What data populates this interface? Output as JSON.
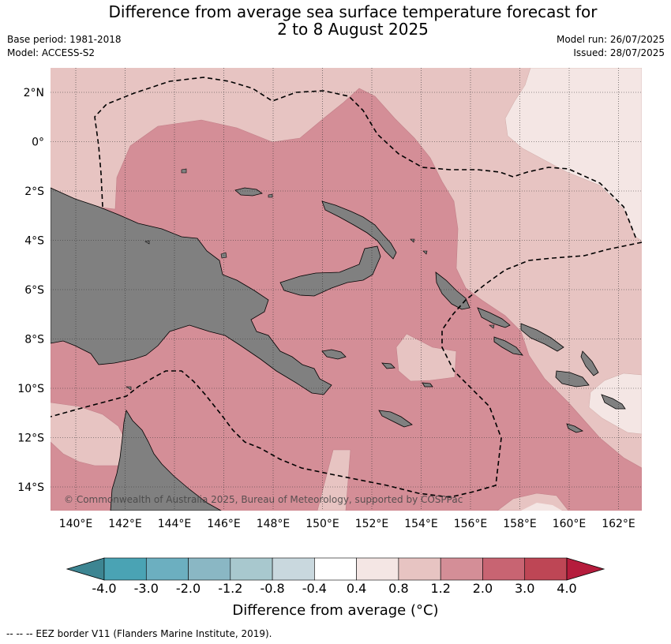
{
  "header": {
    "title_line1": "Difference from average sea surface temperature forecast for",
    "title_line2": "2 to 8 August 2025",
    "base_period": "Base period: 1981-2018",
    "model": "Model: ACCESS-S2",
    "model_run": "Model run: 26/07/2025",
    "issued": "Issued: 28/07/2025"
  },
  "map": {
    "lat_labels": [
      "2°N",
      "0°",
      "2°S",
      "4°S",
      "6°S",
      "8°S",
      "10°S",
      "12°S",
      "14°S"
    ],
    "lon_labels": [
      "140°E",
      "142°E",
      "144°E",
      "146°E",
      "148°E",
      "150°E",
      "152°E",
      "154°E",
      "156°E",
      "158°E",
      "160°E",
      "162°E"
    ],
    "copyright": "© Commonwealth of Australia 2025, Bureau of Meteorology, supported by COSPPac",
    "colors": {
      "land": "#808080",
      "bin_0_4_0_8": "#f4e6e4",
      "bin_0_8_1_2": "#e7c4c2",
      "bin_1_2_2_0": "#d48e97"
    }
  },
  "colorbar": {
    "tick_labels": [
      "-4.0",
      "-3.0",
      "-2.0",
      "-1.2",
      "-0.8",
      "-0.4",
      "0.4",
      "0.8",
      "1.2",
      "2.0",
      "3.0",
      "4.0"
    ],
    "colors": [
      "#3d8592",
      "#4aa3b4",
      "#6cafc0",
      "#8ab7c4",
      "#a8c8ce",
      "#c9d8de",
      "#ffffff",
      "#f4e6e4",
      "#e7c4c2",
      "#d48e97",
      "#c86472",
      "#be4655"
    ],
    "extend_low_color": "#3d8592",
    "extend_high_color": "#b51c3c",
    "title": "Difference from average (°C)"
  },
  "footnote": "--  --  -- EEZ border V11 (Flanders Marine Institute, 2019)."
}
